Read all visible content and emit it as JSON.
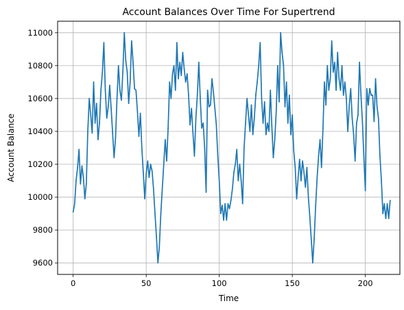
{
  "chart_data": {
    "type": "line",
    "title": "Account Balances Over Time For Supertrend",
    "xlabel": "Time",
    "ylabel": "Account Balance",
    "xlim": [
      -10.65,
      223.65
    ],
    "ylim": [
      9530,
      11070
    ],
    "xticks": [
      0,
      50,
      100,
      150,
      200
    ],
    "yticks": [
      9600,
      9800,
      10000,
      10200,
      10400,
      10600,
      10800,
      11000
    ],
    "grid": true,
    "colors": {
      "line": "#1f77b4",
      "grid": "#b0b0b0",
      "axes": "#000000"
    },
    "series": [
      {
        "name": "",
        "x_start": 0,
        "x_step": 1,
        "values": [
          9910,
          9960,
          10100,
          10180,
          10290,
          10080,
          10190,
          10120,
          9990,
          10080,
          10400,
          10600,
          10500,
          10390,
          10700,
          10450,
          10570,
          10350,
          10450,
          10650,
          10760,
          10940,
          10650,
          10480,
          10550,
          10680,
          10540,
          10390,
          10240,
          10360,
          10600,
          10800,
          10650,
          10590,
          10760,
          11000,
          10830,
          10760,
          10570,
          10700,
          10950,
          10820,
          10660,
          10650,
          10520,
          10370,
          10510,
          10300,
          10150,
          9990,
          10140,
          10220,
          10120,
          10200,
          10160,
          10050,
          9900,
          9760,
          9600,
          9700,
          9900,
          10050,
          10200,
          10350,
          10220,
          10420,
          10700,
          10600,
          10750,
          10800,
          10650,
          10940,
          10720,
          10820,
          10740,
          10880,
          10780,
          10700,
          10750,
          10620,
          10440,
          10540,
          10390,
          10250,
          10480,
          10620,
          10820,
          10600,
          10420,
          10450,
          10300,
          10030,
          10650,
          10550,
          10560,
          10720,
          10640,
          10540,
          10440,
          10250,
          10100,
          9900,
          9950,
          9860,
          9960,
          9860,
          9960,
          9930,
          9980,
          10050,
          10150,
          10200,
          10290,
          10100,
          10200,
          10100,
          9960,
          10300,
          10450,
          10600,
          10500,
          10400,
          10560,
          10380,
          10480,
          10620,
          10700,
          10800,
          10940,
          10600,
          10450,
          10580,
          10380,
          10450,
          10400,
          10650,
          10430,
          10240,
          10350,
          10520,
          10800,
          10580,
          11000,
          10880,
          10800,
          10550,
          10700,
          10450,
          10620,
          10380,
          10500,
          10280,
          10180,
          9990,
          10120,
          10230,
          10100,
          10220,
          10150,
          10060,
          10180,
          10000,
          9880,
          9740,
          9600,
          9750,
          9950,
          10120,
          10250,
          10350,
          10180,
          10420,
          10700,
          10560,
          10800,
          10650,
          10720,
          10950,
          10760,
          10820,
          10650,
          10880,
          10720,
          10650,
          10800,
          10620,
          10700,
          10600,
          10400,
          10560,
          10660,
          10480,
          10380,
          10220,
          10450,
          10500,
          10820,
          10620,
          10460,
          10240,
          10040,
          10660,
          10560,
          10660,
          10620,
          10620,
          10460,
          10720,
          10550,
          10480,
          10250,
          10100,
          9900,
          9960,
          9870,
          9960,
          9870,
          9980
        ]
      }
    ]
  }
}
